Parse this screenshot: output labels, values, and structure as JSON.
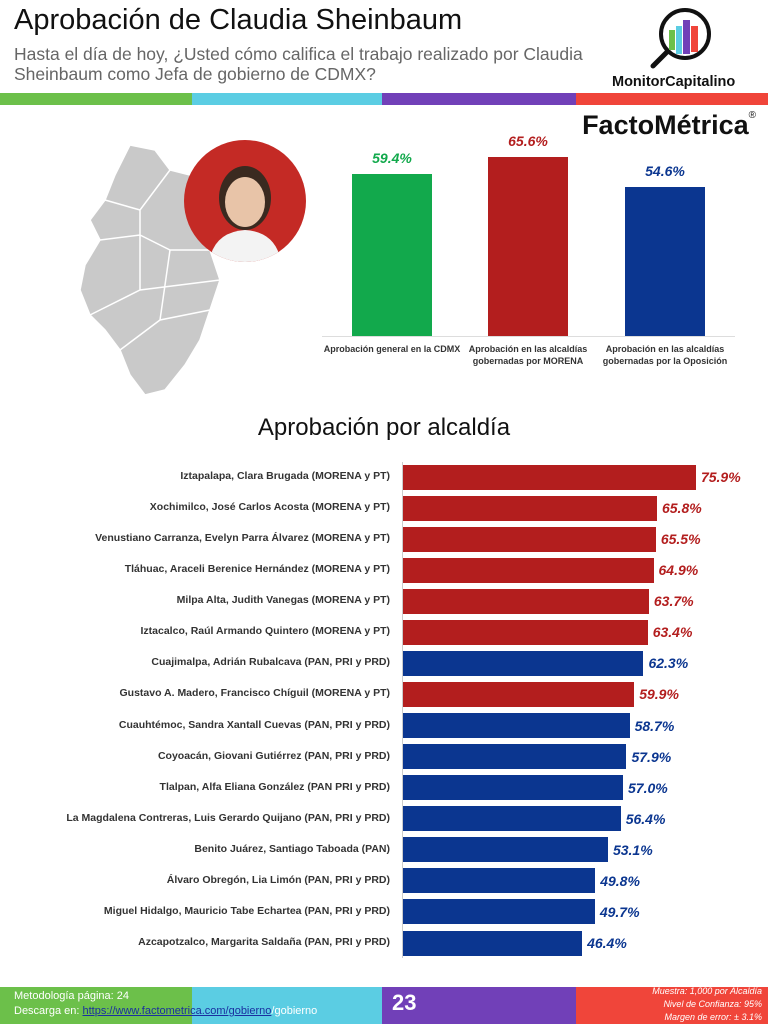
{
  "header": {
    "title": "Aprobación de Claudia Sheinbaum",
    "subtitle": "Hasta el día de hoy, ¿Usted cómo califica el trabajo realizado por Claudia Sheinbaum como Jefa de gobierno de CDMX?",
    "logo_monitor": "MonitorCapitalino",
    "logo_facto": "FactoMétrica",
    "stripe_colors": [
      "#6cc04a",
      "#5bcde3",
      "#7140b8",
      "#f0453a"
    ]
  },
  "chart_data": [
    {
      "type": "bar",
      "categories": [
        "Aprobación general en la CDMX",
        "Aprobación en las alcaldías gobernadas por MORENA",
        "Aprobación en las alcaldías gobernadas por la Oposición"
      ],
      "values": [
        59.4,
        65.6,
        54.6
      ],
      "value_labels": [
        "59.4%",
        "65.6%",
        "54.6%"
      ],
      "colors": [
        "#12a94c",
        "#b31e1e",
        "#0b3690"
      ],
      "ylim": [
        0,
        100
      ],
      "grid": false
    },
    {
      "type": "bar",
      "orientation": "horizontal",
      "title": "Aprobación por alcaldía",
      "categories": [
        "Iztapalapa,  Clara Brugada (MORENA y PT)",
        "Xochimilco, José Carlos Acosta (MORENA y PT)",
        "Venustiano Carranza, Evelyn Parra Álvarez (MORENA y PT)",
        "Tláhuac,  Araceli Berenice Hernández (MORENA y PT)",
        "Milpa Alta, Judith Vanegas (MORENA y PT)",
        "Iztacalco, Raúl Armando Quintero (MORENA y PT)",
        "Cuajimalpa, Adrián Rubalcava (PAN, PRI y PRD)",
        "Gustavo A. Madero, Francisco Chíguil (MORENA y PT)",
        "Cuauhtémoc, Sandra Xantall Cuevas (PAN, PRI y PRD)",
        "Coyoacán, Giovani Gutiérrez (PAN, PRI y PRD)",
        "Tlalpan, Alfa Eliana González (PAN PRI y PRD)",
        "La Magdalena Contreras, Luis Gerardo Quijano (PAN, PRI y PRD)",
        "Benito Juárez, Santiago Taboada (PAN)",
        "Álvaro Obregón, Lia Limón (PAN, PRI y PRD)",
        "Miguel Hidalgo, Mauricio Tabe Echartea (PAN, PRI y PRD)",
        "Azcapotzalco, Margarita Saldaña (PAN, PRI y PRD)"
      ],
      "values": [
        75.9,
        65.8,
        65.5,
        64.9,
        63.7,
        63.4,
        62.3,
        59.9,
        58.7,
        57.9,
        57.0,
        56.4,
        53.1,
        49.8,
        49.7,
        46.4
      ],
      "value_labels": [
        "75.9%",
        "65.8%",
        "65.5%",
        "64.9%",
        "63.7%",
        "63.4%",
        "62.3%",
        "59.9%",
        "58.7%",
        "57.9%",
        "57.0%",
        "56.4%",
        "53.1%",
        "49.8%",
        "49.7%",
        "46.4%"
      ],
      "party": [
        "M",
        "M",
        "M",
        "M",
        "M",
        "M",
        "O",
        "M",
        "O",
        "O",
        "O",
        "O",
        "O",
        "O",
        "O",
        "O"
      ],
      "colors": {
        "M": "#b31e1e",
        "O": "#0b3690"
      },
      "xlim": [
        0,
        100
      ],
      "grid": false
    }
  ],
  "footer": {
    "methodology": "Metodología página: 24",
    "download_prefix": "Descarga en: ",
    "download_link": "https://www.factometrica.com/gobierno",
    "download_suffix": "/gobierno",
    "page": "23",
    "sample": "Muestra:  1,000 por Alcaldía",
    "confidence": "Nivel de Confianza: 95%",
    "error": "Margen de error: ± 3.1%"
  }
}
